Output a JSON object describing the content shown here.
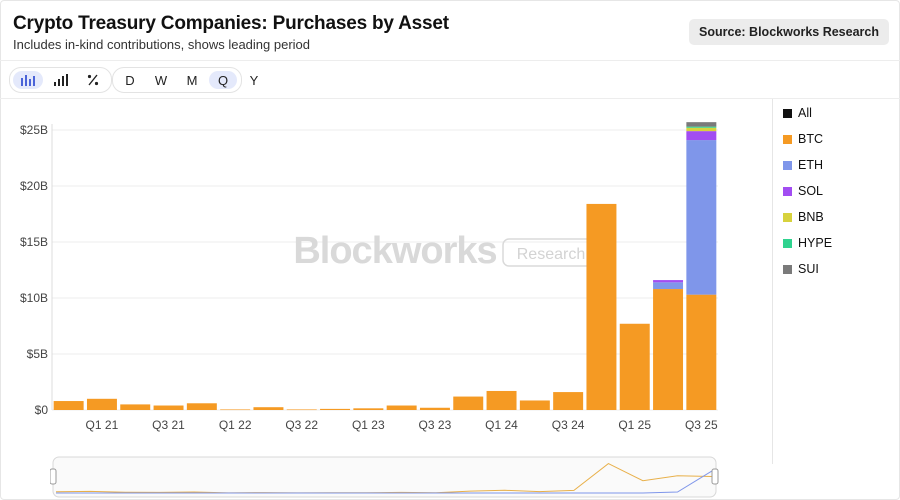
{
  "header": {
    "title": "Crypto Treasury Companies: Purchases by Asset",
    "subtitle": "Includes in-kind contributions, shows leading period",
    "source_label": "Source: Blockworks Research"
  },
  "toolbar": {
    "chart_modes": [
      {
        "icon": "bar-chart-icon",
        "active": true
      },
      {
        "icon": "cumulative-bar-icon",
        "active": false
      },
      {
        "icon": "percent-icon",
        "active": false
      }
    ],
    "periods": [
      {
        "label": "D",
        "active": false
      },
      {
        "label": "W",
        "active": false
      },
      {
        "label": "M",
        "active": false
      },
      {
        "label": "Q",
        "active": true
      },
      {
        "label": "Y",
        "active": false
      }
    ]
  },
  "watermark": {
    "brand": "Blockworks",
    "tag": "Research"
  },
  "legend": [
    {
      "label": "All",
      "color": "#111111"
    },
    {
      "label": "BTC",
      "color": "#f59a23"
    },
    {
      "label": "ETH",
      "color": "#7f96ea"
    },
    {
      "label": "SOL",
      "color": "#a24df2"
    },
    {
      "label": "BNB",
      "color": "#d7d23d"
    },
    {
      "label": "HYPE",
      "color": "#2fd38f"
    },
    {
      "label": "SUI",
      "color": "#7a7a7a"
    }
  ],
  "chart_data": {
    "type": "bar",
    "stacked": true,
    "grid": true,
    "ylim": [
      0,
      25
    ],
    "y_ticks": [
      "$0",
      "$5B",
      "$10B",
      "$15B",
      "$20B",
      "$25B"
    ],
    "categories": [
      "Q4 20",
      "Q1 21",
      "Q2 21",
      "Q3 21",
      "Q4 21",
      "Q1 22",
      "Q2 22",
      "Q3 22",
      "Q4 22",
      "Q1 23",
      "Q2 23",
      "Q3 23",
      "Q4 23",
      "Q1 24",
      "Q2 24",
      "Q3 24",
      "Q4 24",
      "Q1 25",
      "Q2 25",
      "Q3 25"
    ],
    "x_tick_labels": [
      "Q1 21",
      "Q3 21",
      "Q1 22",
      "Q3 22",
      "Q1 23",
      "Q3 23",
      "Q1 24",
      "Q3 24",
      "Q1 25",
      "Q3 25"
    ],
    "series": [
      {
        "name": "BTC",
        "color": "#f59a23",
        "values": [
          0.8,
          1.0,
          0.5,
          0.4,
          0.6,
          0.05,
          0.25,
          0.05,
          0.1,
          0.15,
          0.4,
          0.2,
          1.2,
          1.7,
          0.85,
          1.6,
          18.4,
          7.7,
          10.8,
          10.3
        ]
      },
      {
        "name": "ETH",
        "color": "#7f96ea",
        "values": [
          0,
          0,
          0,
          0,
          0,
          0,
          0,
          0,
          0,
          0,
          0,
          0,
          0,
          0,
          0,
          0,
          0,
          0,
          0.6,
          13.8
        ]
      },
      {
        "name": "SOL",
        "color": "#a24df2",
        "values": [
          0,
          0,
          0,
          0,
          0,
          0,
          0,
          0,
          0,
          0,
          0,
          0,
          0,
          0,
          0,
          0,
          0,
          0,
          0.2,
          0.8
        ]
      },
      {
        "name": "BNB",
        "color": "#d7d23d",
        "values": [
          0,
          0,
          0,
          0,
          0,
          0,
          0,
          0,
          0,
          0,
          0,
          0,
          0,
          0,
          0,
          0,
          0,
          0,
          0,
          0.3
        ]
      },
      {
        "name": "HYPE",
        "color": "#2fd38f",
        "values": [
          0,
          0,
          0,
          0,
          0,
          0,
          0,
          0,
          0,
          0,
          0,
          0,
          0,
          0,
          0,
          0,
          0,
          0,
          0,
          0.1
        ]
      },
      {
        "name": "SUI",
        "color": "#7a7a7a",
        "values": [
          0,
          0,
          0,
          0,
          0,
          0,
          0,
          0,
          0,
          0,
          0,
          0,
          0,
          0,
          0,
          0,
          0,
          0,
          0,
          0.4
        ]
      }
    ]
  }
}
